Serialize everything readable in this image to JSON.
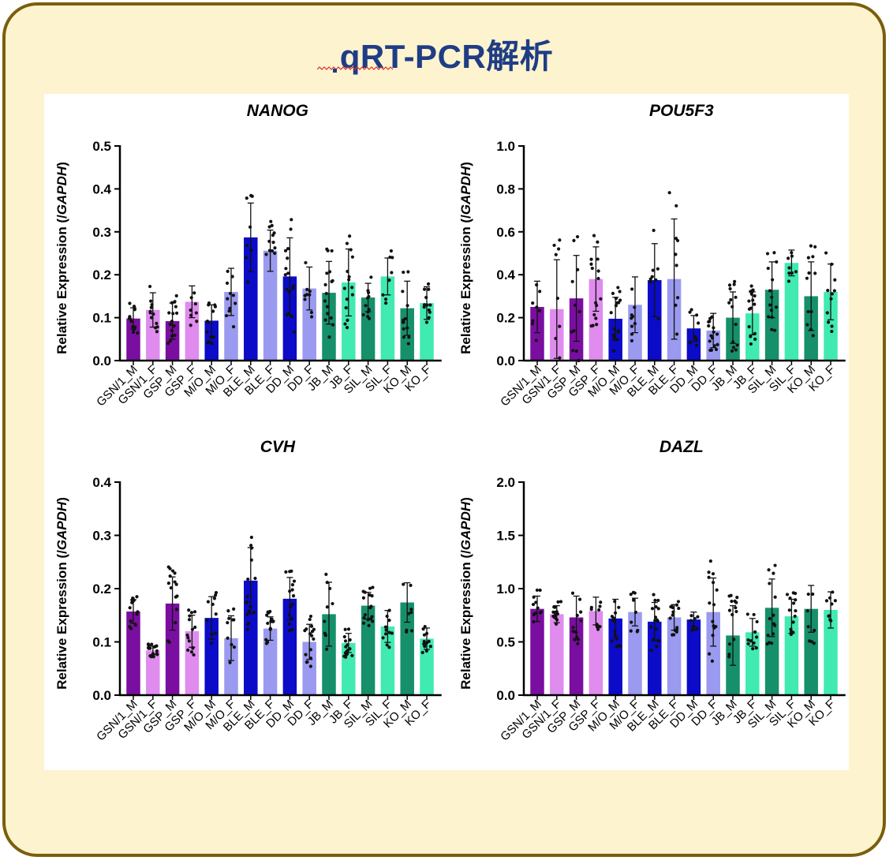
{
  "slide_title": "qRT-PCR解析",
  "chart_data": [
    {
      "type": "bar",
      "title": "NANOG",
      "ylabel": "Relative Expression (/GAPDH)",
      "ylim": [
        0,
        0.5
      ],
      "yticks": [
        "0.0",
        "0.1",
        "0.2",
        "0.3",
        "0.4",
        "0.5"
      ],
      "categories": [
        "GSN/1_M",
        "GSN/1_F",
        "GSP_M",
        "GSP_F",
        "M/O_M",
        "M/O_F",
        "BLE_M",
        "BLE_F",
        "DD_M",
        "DD_F",
        "JB_M",
        "JB_F",
        "SIL_M",
        "SIL_F",
        "KO_M",
        "KO_F"
      ],
      "values": [
        0.098,
        0.118,
        0.092,
        0.137,
        0.093,
        0.16,
        0.287,
        0.256,
        0.196,
        0.168,
        0.158,
        0.182,
        0.147,
        0.196,
        0.122,
        0.134
      ],
      "errors": [
        0.025,
        0.04,
        0.042,
        0.037,
        0.037,
        0.055,
        0.08,
        0.048,
        0.09,
        0.05,
        0.073,
        0.078,
        0.033,
        0.043,
        0.063,
        0.038
      ],
      "colors": [
        "#7a0ea0",
        "#df8cee",
        "#7a0ea0",
        "#df8cee",
        "#0b0bc8",
        "#9a9af0",
        "#0b0bc8",
        "#9a9af0",
        "#0b0bc8",
        "#9a9af0",
        "#15906a",
        "#40eab0",
        "#15906a",
        "#40eab0",
        "#15906a",
        "#40eab0"
      ]
    },
    {
      "type": "bar",
      "title": "POU5F3",
      "ylabel": "Relative Expression (/GAPDH)",
      "ylim": [
        0,
        1.0
      ],
      "yticks": [
        "0.0",
        "0.2",
        "0.4",
        "0.6",
        "0.8",
        "1.0"
      ],
      "categories": [
        "GSN/1_M",
        "GSN/1_F",
        "GSP_M",
        "GSP_F",
        "M/O_M",
        "M/O_F",
        "BLE_M",
        "BLE_F",
        "DD_M",
        "DD_F",
        "JB_M",
        "JB_F",
        "SIL_M",
        "SIL_F",
        "KO_M",
        "KO_F"
      ],
      "values": [
        0.25,
        0.24,
        0.29,
        0.38,
        0.195,
        0.26,
        0.375,
        0.38,
        0.15,
        0.14,
        0.2,
        0.22,
        0.33,
        0.455,
        0.3,
        0.32
      ],
      "errors": [
        0.12,
        0.23,
        0.2,
        0.15,
        0.1,
        0.13,
        0.17,
        0.28,
        0.06,
        0.08,
        0.12,
        0.1,
        0.13,
        0.06,
        0.16,
        0.13
      ],
      "colors": [
        "#7a0ea0",
        "#df8cee",
        "#7a0ea0",
        "#df8cee",
        "#0b0bc8",
        "#9a9af0",
        "#0b0bc8",
        "#9a9af0",
        "#0b0bc8",
        "#9a9af0",
        "#15906a",
        "#40eab0",
        "#15906a",
        "#40eab0",
        "#15906a",
        "#40eab0"
      ]
    },
    {
      "type": "bar",
      "title": "CVH",
      "ylabel": "Relative Expression (/GAPDH)",
      "ylim": [
        0,
        0.4
      ],
      "yticks": [
        "0.0",
        "0.1",
        "0.2",
        "0.3",
        "0.4"
      ],
      "categories": [
        "GSN/1_M",
        "GSN/1_F",
        "GSP_M",
        "GSP_F",
        "M/O_M",
        "M/O_F",
        "BLE_M",
        "BLE_F",
        "DD_M",
        "DD_F",
        "JB_M",
        "JB_F",
        "SIL_M",
        "SIL_F",
        "KO_M",
        "KO_F"
      ],
      "values": [
        0.157,
        0.084,
        0.172,
        0.12,
        0.145,
        0.107,
        0.215,
        0.125,
        0.181,
        0.1,
        0.152,
        0.098,
        0.168,
        0.129,
        0.174,
        0.106
      ],
      "errors": [
        0.022,
        0.008,
        0.05,
        0.03,
        0.04,
        0.042,
        0.062,
        0.022,
        0.04,
        0.033,
        0.06,
        0.018,
        0.025,
        0.03,
        0.037,
        0.02
      ],
      "colors": [
        "#7a0ea0",
        "#df8cee",
        "#7a0ea0",
        "#df8cee",
        "#0b0bc8",
        "#9a9af0",
        "#0b0bc8",
        "#9a9af0",
        "#0b0bc8",
        "#9a9af0",
        "#15906a",
        "#40eab0",
        "#15906a",
        "#40eab0",
        "#15906a",
        "#40eab0"
      ]
    },
    {
      "type": "bar",
      "title": "DAZL",
      "ylabel": "Relative Expression (/GAPDH)",
      "ylim": [
        0,
        2.0
      ],
      "yticks": [
        "0.0",
        "0.5",
        "1.0",
        "1.5",
        "2.0"
      ],
      "categories": [
        "GSN/1_M",
        "GSN/1_F",
        "GSP_M",
        "GSP_F",
        "M/O_M",
        "M/O_F",
        "BLE_M",
        "BLE_F",
        "DD_M",
        "DD_F",
        "JB_M",
        "JB_F",
        "SIL_M",
        "SIL_F",
        "KO_M",
        "KO_F"
      ],
      "values": [
        0.81,
        0.76,
        0.73,
        0.79,
        0.72,
        0.78,
        0.69,
        0.73,
        0.71,
        0.78,
        0.56,
        0.59,
        0.82,
        0.74,
        0.81,
        0.8
      ],
      "errors": [
        0.12,
        0.08,
        0.2,
        0.13,
        0.18,
        0.13,
        0.18,
        0.12,
        0.07,
        0.32,
        0.28,
        0.13,
        0.27,
        0.16,
        0.22,
        0.17
      ],
      "colors": [
        "#7a0ea0",
        "#df8cee",
        "#7a0ea0",
        "#df8cee",
        "#0b0bc8",
        "#9a9af0",
        "#0b0bc8",
        "#9a9af0",
        "#0b0bc8",
        "#9a9af0",
        "#15906a",
        "#40eab0",
        "#15906a",
        "#40eab0",
        "#15906a",
        "#40eab0"
      ]
    }
  ]
}
